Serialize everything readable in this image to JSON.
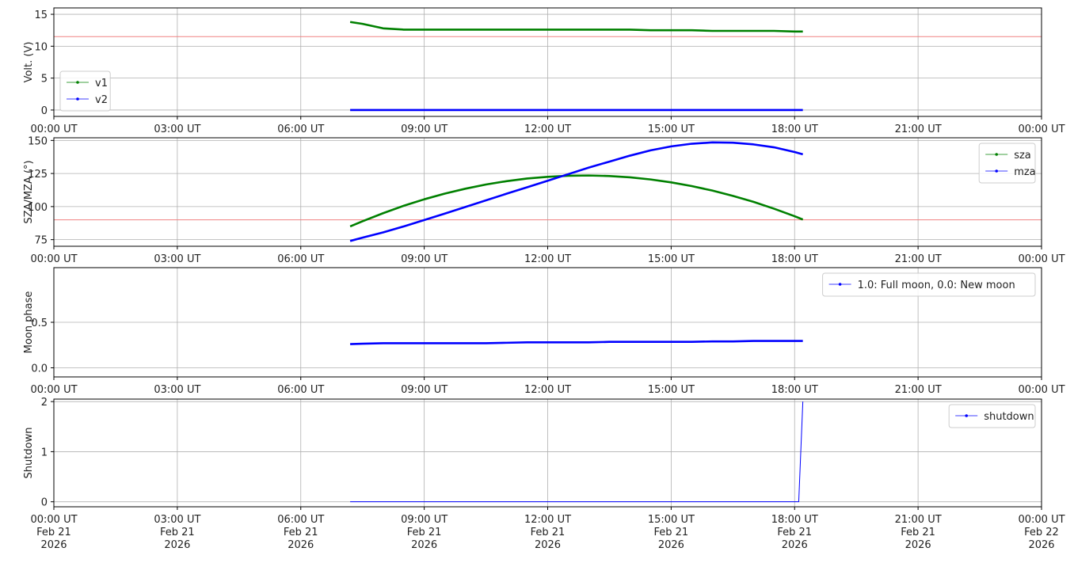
{
  "chart_data": [
    {
      "type": "line",
      "ylabel": "Volt. (V)",
      "xlim": [
        0,
        24
      ],
      "ylim": [
        -1,
        16
      ],
      "yticks": [
        0,
        5,
        10,
        15
      ],
      "xticks": [
        {
          "value": 0,
          "label": "00:00 UT"
        },
        {
          "value": 3,
          "label": "03:00 UT"
        },
        {
          "value": 6,
          "label": "06:00 UT"
        },
        {
          "value": 9,
          "label": "09:00 UT"
        },
        {
          "value": 12,
          "label": "12:00 UT"
        },
        {
          "value": 15,
          "label": "15:00 UT"
        },
        {
          "value": 18,
          "label": "18:00 UT"
        },
        {
          "value": 21,
          "label": "21:00 UT"
        },
        {
          "value": 24,
          "label": "00:00 UT"
        }
      ],
      "grid": true,
      "legend": "lower left",
      "hlines": [
        11.5
      ],
      "hline_color": "#f08080",
      "x": [
        7.2,
        7.5,
        8,
        8.5,
        9,
        9.5,
        10,
        10.5,
        11,
        11.5,
        12,
        12.5,
        13,
        13.5,
        14,
        14.5,
        15,
        15.5,
        16,
        16.5,
        17,
        17.5,
        18,
        18.2
      ],
      "series": [
        {
          "name": "v1",
          "color": "#008000",
          "values": [
            13.8,
            13.5,
            12.8,
            12.6,
            12.6,
            12.6,
            12.6,
            12.6,
            12.6,
            12.6,
            12.6,
            12.6,
            12.6,
            12.6,
            12.6,
            12.5,
            12.5,
            12.5,
            12.4,
            12.4,
            12.4,
            12.4,
            12.3,
            12.3
          ]
        },
        {
          "name": "v2",
          "color": "#0000ff",
          "values": [
            0,
            0,
            0,
            0,
            0,
            0,
            0,
            0,
            0,
            0,
            0,
            0,
            0,
            0,
            0,
            0,
            0,
            0,
            0,
            0,
            0,
            0,
            0,
            0
          ]
        }
      ]
    },
    {
      "type": "line",
      "ylabel": "SZA/MZA (°)",
      "xlim": [
        0,
        24
      ],
      "ylim": [
        70,
        152
      ],
      "yticks": [
        75,
        100,
        125,
        150
      ],
      "xticks": [
        {
          "value": 0,
          "label": "00:00 UT"
        },
        {
          "value": 3,
          "label": "03:00 UT"
        },
        {
          "value": 6,
          "label": "06:00 UT"
        },
        {
          "value": 9,
          "label": "09:00 UT"
        },
        {
          "value": 12,
          "label": "12:00 UT"
        },
        {
          "value": 15,
          "label": "15:00 UT"
        },
        {
          "value": 18,
          "label": "18:00 UT"
        },
        {
          "value": 21,
          "label": "21:00 UT"
        },
        {
          "value": 24,
          "label": "00:00 UT"
        }
      ],
      "grid": true,
      "legend": "upper right",
      "hlines": [
        90
      ],
      "hline_color": "#f08080",
      "x": [
        7.2,
        7.5,
        8,
        8.5,
        9,
        9.5,
        10,
        10.5,
        11,
        11.5,
        12,
        12.5,
        13,
        13.5,
        14,
        14.5,
        15,
        15.5,
        16,
        16.5,
        17,
        17.5,
        18,
        18.2
      ],
      "series": [
        {
          "name": "sza",
          "color": "#008000",
          "values": [
            85,
            88.9,
            95,
            100.6,
            105.5,
            109.8,
            113.5,
            116.7,
            119.2,
            121.2,
            122.5,
            123.3,
            123.5,
            123.1,
            122.1,
            120.5,
            118.3,
            115.5,
            112.1,
            108.1,
            103.6,
            98.4,
            92.7,
            90.2
          ]
        },
        {
          "name": "mza",
          "color": "#0000ff",
          "values": [
            74,
            76.5,
            80.5,
            85,
            89.8,
            94.7,
            99.7,
            104.7,
            109.7,
            114.6,
            119.5,
            124.5,
            129.5,
            134,
            138.5,
            142.5,
            145.5,
            147.5,
            148.5,
            148.3,
            147,
            144.8,
            141.2,
            139.5
          ]
        }
      ]
    },
    {
      "type": "line",
      "ylabel": "Moon phase",
      "xlim": [
        0,
        24
      ],
      "ylim": [
        -0.1,
        1.1
      ],
      "yticks": [
        {
          "value": 0,
          "label": "0.0"
        },
        0.5
      ],
      "xticks": [
        {
          "value": 0,
          "label": "00:00 UT"
        },
        {
          "value": 3,
          "label": "03:00 UT"
        },
        {
          "value": 6,
          "label": "06:00 UT"
        },
        {
          "value": 9,
          "label": "09:00 UT"
        },
        {
          "value": 12,
          "label": "12:00 UT"
        },
        {
          "value": 15,
          "label": "15:00 UT"
        },
        {
          "value": 18,
          "label": "18:00 UT"
        },
        {
          "value": 21,
          "label": "21:00 UT"
        },
        {
          "value": 24,
          "label": "00:00 UT"
        }
      ],
      "grid": true,
      "legend": "upper right",
      "x": [
        7.2,
        7.5,
        8,
        8.5,
        9,
        9.5,
        10,
        10.5,
        11,
        11.5,
        12,
        12.5,
        13,
        13.5,
        14,
        14.5,
        15,
        15.5,
        16,
        16.5,
        17,
        17.5,
        18,
        18.2
      ],
      "series": [
        {
          "name": "1.0: Full moon, 0.0: New moon",
          "color": "#0000ff",
          "values": [
            0.26,
            0.265,
            0.27,
            0.27,
            0.27,
            0.27,
            0.27,
            0.27,
            0.275,
            0.28,
            0.28,
            0.28,
            0.28,
            0.285,
            0.285,
            0.285,
            0.285,
            0.285,
            0.29,
            0.29,
            0.295,
            0.295,
            0.295,
            0.295
          ]
        }
      ]
    },
    {
      "type": "line",
      "ylabel": "Shutdown",
      "xlim": [
        0,
        24
      ],
      "ylim": [
        -0.1,
        2.05
      ],
      "yticks": [
        0,
        1,
        2
      ],
      "xticks": [
        {
          "value": 0,
          "label": "00:00 UT\nFeb 21\n2026"
        },
        {
          "value": 3,
          "label": "03:00 UT\nFeb 21\n2026"
        },
        {
          "value": 6,
          "label": "06:00 UT\nFeb 21\n2026"
        },
        {
          "value": 9,
          "label": "09:00 UT\nFeb 21\n2026"
        },
        {
          "value": 12,
          "label": "12:00 UT\nFeb 21\n2026"
        },
        {
          "value": 15,
          "label": "15:00 UT\nFeb 21\n2026"
        },
        {
          "value": 18,
          "label": "18:00 UT\nFeb 21\n2026"
        },
        {
          "value": 21,
          "label": "21:00 UT\nFeb 21\n2026"
        },
        {
          "value": 24,
          "label": "00:00 UT\nFeb 22\n2026"
        }
      ],
      "grid": true,
      "legend": "upper right",
      "x": [
        7.2,
        8,
        9,
        10,
        11,
        12,
        13,
        14,
        15,
        16,
        17,
        18,
        18.1,
        18.2
      ],
      "series": [
        {
          "name": "shutdown",
          "color": "#0000ff",
          "values": [
            0,
            0,
            0,
            0,
            0,
            0,
            0,
            0,
            0,
            0,
            0,
            0,
            0,
            2
          ]
        }
      ]
    }
  ]
}
